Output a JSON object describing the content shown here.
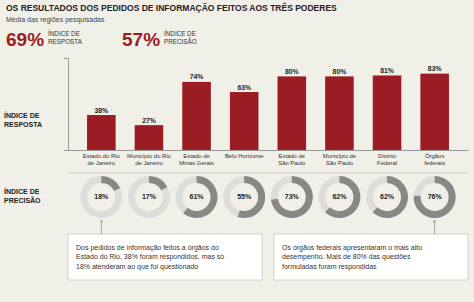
{
  "chart_data": [
    {
      "type": "bar",
      "title": "OS RESULTADOS DOS PEDIDOS DE INFORMAÇÃO FEITOS AOS TRÊS PODERES",
      "subtitle": "Média das regiões pesquisadas",
      "stats": [
        {
          "text": "69%",
          "caption": "ÍNDICE DE\nRESPOSTA"
        },
        {
          "text": "57%",
          "caption": "ÍNDICE DE\nPRECISÃO"
        }
      ],
      "categories": [
        "Estado do Rio\nde Janeiro",
        "Município do Rio\nde Janeiro",
        "Estado de\nMinas Gerais",
        "Belo Horizonte",
        "Estado de\nSão Paulo",
        "Município de\nSão Paulo",
        "Distrito\nFederal",
        "Órgãos\nfederais"
      ],
      "values": [
        38,
        27,
        74,
        63,
        80,
        80,
        81,
        83
      ],
      "value_labels": [
        "38%",
        "27%",
        "74%",
        "63%",
        "80%",
        "80%",
        "81%",
        "83%"
      ],
      "data_labels": true,
      "color": "#9b1c22",
      "y_label": "ÍNDICE DE\nRESPOSTA",
      "ylim": [
        0,
        100
      ],
      "yticks": [
        0,
        100
      ],
      "tick_labels": "x",
      "grid": false,
      "annotations": [
        "Dos pedidos de informação feitos a órgãos do\nEstado do Rio, 38% foram respondidos, mas só\n18% atenderam ao que foi questionado",
        "Os órgãos federais apresentaram o mais alto\ndesempenho. Mais de 80% das questões\nformuladas foram respondidas"
      ]
    },
    {
      "type": "donut",
      "y_label": "ÍNDICE DE\nPRECISÃO",
      "values": [
        18,
        17,
        61,
        55,
        73,
        62,
        62,
        76
      ],
      "value_labels": [
        "18%",
        "17%",
        "61%",
        "55%",
        "73%",
        "62%",
        "62%",
        "76%"
      ],
      "data_labels": true,
      "color": "#888888",
      "ylim": [
        0,
        100
      ]
    }
  ]
}
